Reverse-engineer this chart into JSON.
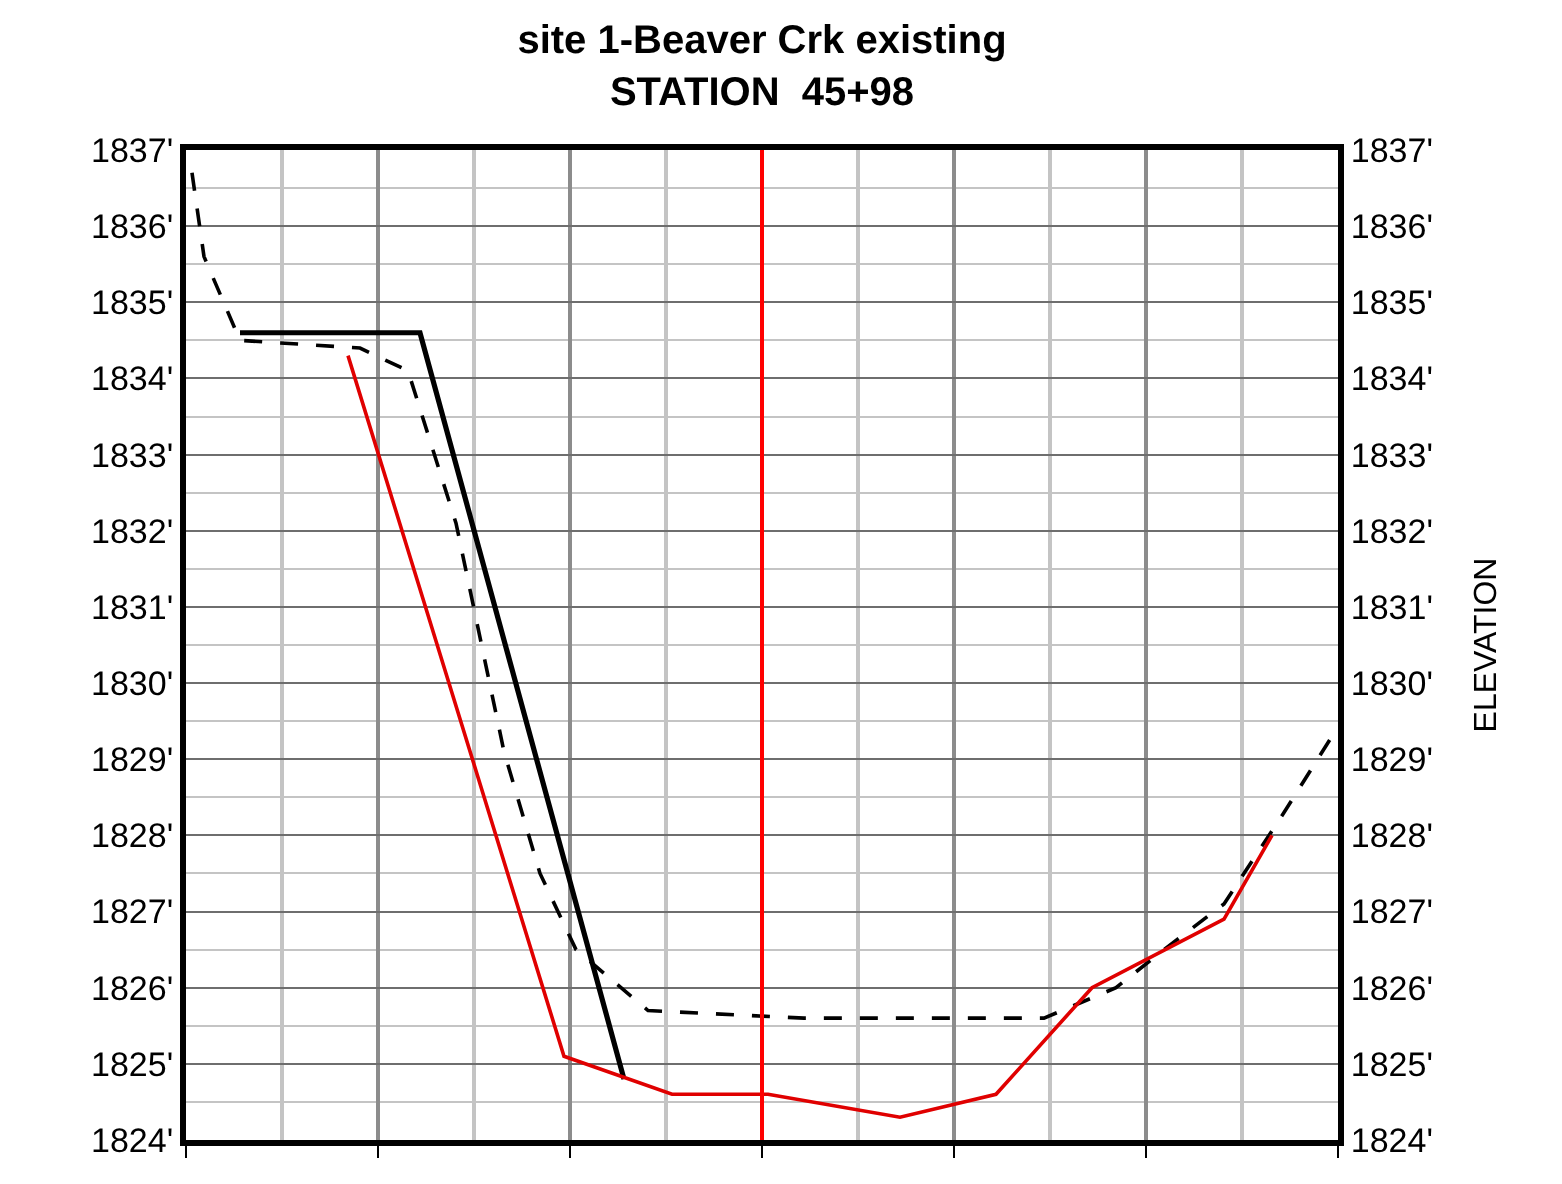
{
  "chart_data": {
    "type": "line",
    "title": "site 1-Beaver Crk existing\nSTATION  45+98",
    "y2label": "ELEVATION",
    "categories": [
      null,
      null,
      null,
      null,
      null,
      null,
      null,
      null,
      null,
      null,
      null,
      null,
      null,
      null,
      null,
      null,
      null,
      null,
      null,
      null,
      null,
      null,
      null,
      null,
      null,
      null,
      null,
      null,
      null,
      null,
      null,
      null,
      null,
      null,
      null,
      null,
      null,
      null,
      null,
      null,
      null,
      null,
      null,
      null,
      null,
      null,
      null,
      null,
      null,
      null,
      null,
      null,
      null,
      null,
      null,
      null,
      null,
      null,
      null,
      null,
      null,
      null,
      null,
      null,
      null,
      null,
      null,
      null,
      null,
      null,
      null,
      null,
      null,
      null,
      null,
      null,
      null,
      null,
      null,
      null,
      null,
      null,
      null,
      null,
      null,
      null,
      null,
      null,
      null,
      null,
      null,
      null,
      null,
      null,
      null,
      null
    ],
    "ylim": [
      1824,
      1837
    ],
    "yticks": [
      {
        "value": 1824,
        "label": "1824'"
      },
      {
        "value": 1825,
        "label": "1825'"
      },
      {
        "value": 1826,
        "label": "1826'"
      },
      {
        "value": 1827,
        "label": "1827'"
      },
      {
        "value": 1828,
        "label": "1828'"
      },
      {
        "value": 1829,
        "label": "1829'"
      },
      {
        "value": 1830,
        "label": "1830'"
      },
      {
        "value": 1831,
        "label": "1831'"
      },
      {
        "value": 1832,
        "label": "1832'"
      },
      {
        "value": 1833,
        "label": "1833'"
      },
      {
        "value": 1834,
        "label": "1834'"
      },
      {
        "value": 1835,
        "label": "1835'"
      },
      {
        "value": 1836,
        "label": "1836'"
      },
      {
        "value": 1837,
        "label": "1837'"
      }
    ],
    "y2lim": [
      1824,
      1837
    ],
    "y2ticks": [
      {
        "value": 1824,
        "label": "1824'"
      },
      {
        "value": 1825,
        "label": "1825'"
      },
      {
        "value": 1826,
        "label": "1826'"
      },
      {
        "value": 1827,
        "label": "1827'"
      },
      {
        "value": 1828,
        "label": "1828'"
      },
      {
        "value": 1829,
        "label": "1829'"
      },
      {
        "value": 1830,
        "label": "1830'"
      },
      {
        "value": 1831,
        "label": "1831'"
      },
      {
        "value": 1832,
        "label": "1832'"
      },
      {
        "value": 1833,
        "label": "1833'"
      },
      {
        "value": 1834,
        "label": "1834'"
      },
      {
        "value": 1835,
        "label": "1835'"
      },
      {
        "value": 1836,
        "label": "1836'"
      },
      {
        "value": 1837,
        "label": "1837'"
      }
    ],
    "grid": true,
    "marker": "none",
    "series": [
      {
        "color": "#000000",
        "line_style": "solid",
        "values": [
          null,
          null,
          null,
          null,
          1834.6,
          null,
          null,
          null,
          null,
          null,
          null,
          null,
          null,
          null,
          null,
          null,
          null,
          null,
          null,
          1834.6,
          null,
          null,
          null,
          null,
          null,
          null,
          null,
          null,
          null,
          null,
          null,
          null,
          null,
          null,
          null,
          null,
          1824.8,
          null,
          null,
          null,
          null,
          null,
          null,
          null,
          null,
          null,
          null,
          null,
          null,
          null,
          null,
          null,
          null,
          null,
          null,
          null,
          null,
          null,
          null,
          null,
          null,
          null,
          null,
          null,
          null,
          null,
          null,
          null,
          null,
          null,
          null,
          null,
          null,
          null,
          null,
          null,
          null,
          null,
          null,
          null,
          null,
          null,
          null,
          null,
          null,
          null,
          null,
          null,
          null,
          null,
          null,
          null,
          null,
          null,
          null,
          null
        ]
      },
      {
        "color": "#000000",
        "line_style": "dashed",
        "values": [
          1836.7,
          1835.6,
          null,
          null,
          1834.5,
          null,
          null,
          null,
          null,
          null,
          null,
          null,
          null,
          null,
          1834.4,
          null,
          null,
          null,
          1834.1,
          null,
          null,
          null,
          1832.1,
          null,
          null,
          null,
          1829.1,
          null,
          null,
          1827.5,
          null,
          null,
          1826.5,
          null,
          null,
          null,
          null,
          null,
          1825.7,
          null,
          null,
          null,
          null,
          null,
          null,
          null,
          null,
          null,
          null,
          null,
          null,
          1825.6,
          null,
          null,
          null,
          null,
          null,
          null,
          null,
          null,
          null,
          null,
          null,
          null,
          1825.6,
          null,
          null,
          null,
          null,
          null,
          null,
          1825.6,
          null,
          null,
          null,
          null,
          null,
          1826.0,
          null,
          null,
          null,
          1826.5,
          null,
          null,
          null,
          null,
          1827.1,
          null,
          null,
          null,
          null,
          1828.3,
          null,
          null,
          null,
          1829.3
        ]
      },
      {
        "color": "#e00000",
        "line_style": "solid",
        "values": [
          null,
          null,
          null,
          null,
          null,
          null,
          null,
          null,
          null,
          null,
          null,
          null,
          null,
          1834.3,
          null,
          null,
          null,
          null,
          null,
          null,
          null,
          null,
          null,
          null,
          null,
          null,
          null,
          null,
          null,
          null,
          null,
          1825.1,
          null,
          null,
          null,
          null,
          null,
          null,
          null,
          null,
          1824.6,
          null,
          null,
          null,
          null,
          null,
          null,
          null,
          1824.6,
          null,
          null,
          null,
          null,
          null,
          null,
          null,
          null,
          null,
          null,
          1824.3,
          null,
          null,
          null,
          null,
          null,
          null,
          null,
          1824.6,
          null,
          null,
          null,
          null,
          null,
          null,
          null,
          1826.0,
          null,
          null,
          null,
          null,
          null,
          null,
          null,
          null,
          null,
          null,
          1826.9,
          null,
          null,
          null,
          1828.0,
          null,
          null,
          null,
          null,
          null
        ]
      }
    ],
    "ref_lines": [
      {
        "axis": "x",
        "color": "#ff0000",
        "line_style": "solid"
      }
    ]
  }
}
